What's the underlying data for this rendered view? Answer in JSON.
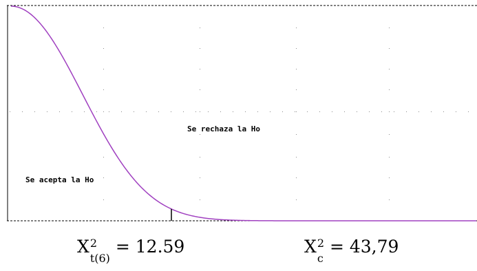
{
  "chart_data": {
    "type": "line",
    "title": "",
    "xlabel": "",
    "ylabel": "",
    "curve": "chi-square density (right tail)",
    "line_color": "#a040c0",
    "axis_color": "#000000",
    "grid": true,
    "grid_style": "dotted",
    "annotations": [
      {
        "text": "Se rechaza la Ho"
      },
      {
        "text": "Se acepta la Ho"
      }
    ],
    "critical_value_marker": true
  },
  "formulas": {
    "left": {
      "symbol": "X",
      "sup": "2",
      "sub": "t(6)",
      "eq": "=",
      "value": "12.59"
    },
    "right": {
      "symbol": "X",
      "sup": "2",
      "sub": "c",
      "eq": "=",
      "value": "43,79"
    }
  }
}
